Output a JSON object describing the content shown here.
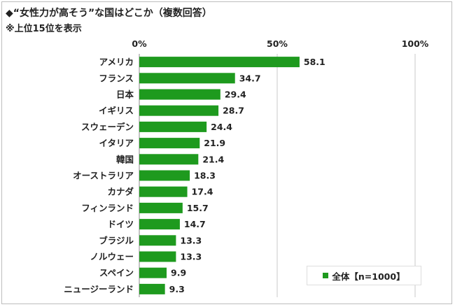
{
  "title": "◆“女性力が高そう”な国はどこか（複数回答）",
  "subtitle": "※上位15位を表示",
  "colors": {
    "bar": "#1e9a1e",
    "axis": "#888888",
    "grid": "#c8c8c8"
  },
  "chart_data": {
    "type": "bar",
    "orientation": "horizontal",
    "categories": [
      "アメリカ",
      "フランス",
      "日本",
      "イギリス",
      "スウェーデン",
      "イタリア",
      "韓国",
      "オーストラリア",
      "カナダ",
      "フィンランド",
      "ドイツ",
      "ブラジル",
      "ノルウェー",
      "スペイン",
      "ニュージーランド"
    ],
    "series": [
      {
        "name": "全体【n=1000】",
        "values": [
          58.1,
          34.7,
          29.4,
          28.7,
          24.4,
          21.9,
          21.4,
          18.3,
          17.4,
          15.7,
          14.7,
          13.3,
          13.3,
          9.9,
          9.3
        ]
      }
    ],
    "value_labels": [
      "58.1",
      "34.7",
      "29.4",
      "28.7",
      "24.4",
      "21.9",
      "21.4",
      "18.3",
      "17.4",
      "15.7",
      "14.7",
      "13.3",
      "13.3",
      "9.9",
      "9.3"
    ],
    "xlim": [
      0,
      100
    ],
    "x_ticks": [
      0,
      50,
      100
    ],
    "x_tick_labels": [
      "0%",
      "50%",
      "100%"
    ],
    "grid": true,
    "legend_position": "bottom-right"
  }
}
